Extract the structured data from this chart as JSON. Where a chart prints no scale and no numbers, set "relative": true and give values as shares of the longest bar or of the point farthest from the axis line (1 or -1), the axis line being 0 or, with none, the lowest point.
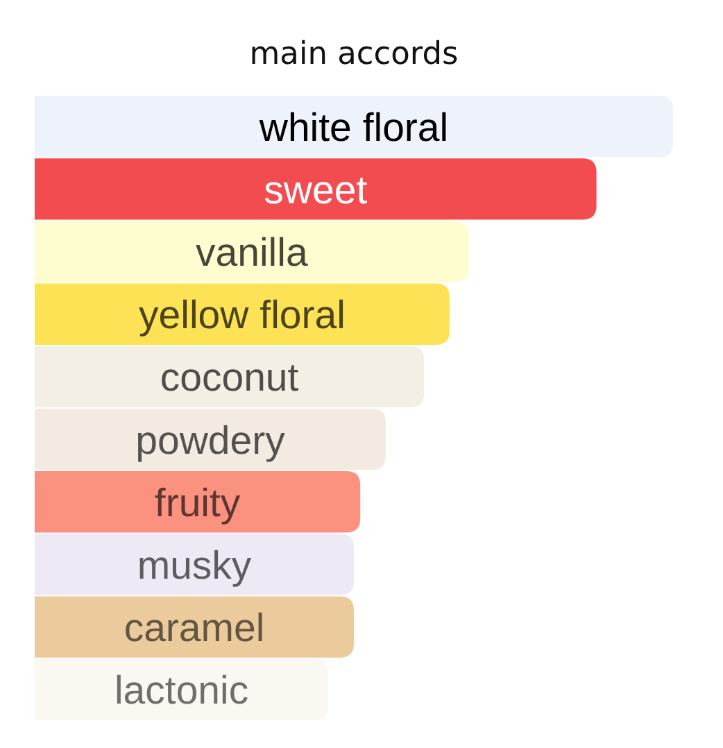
{
  "chart_data": {
    "type": "bar",
    "orientation": "horizontal",
    "relative": true,
    "title": "main accords",
    "categories": [
      "white floral",
      "sweet",
      "vanilla",
      "yellow floral",
      "coconut",
      "powdery",
      "fruity",
      "musky",
      "caramel",
      "lactonic"
    ],
    "values": [
      1,
      0.88,
      0.68,
      0.65,
      0.61,
      0.55,
      0.51,
      0.5,
      0.5,
      0.46
    ],
    "colors": [
      "#eef2fb",
      "#f24c51",
      "#fefdd0",
      "#fde255",
      "#f3efe4",
      "#f3ebe2",
      "#fb9280",
      "#efe9f5",
      "#ebcb9c",
      "#fbf8f2"
    ]
  }
}
